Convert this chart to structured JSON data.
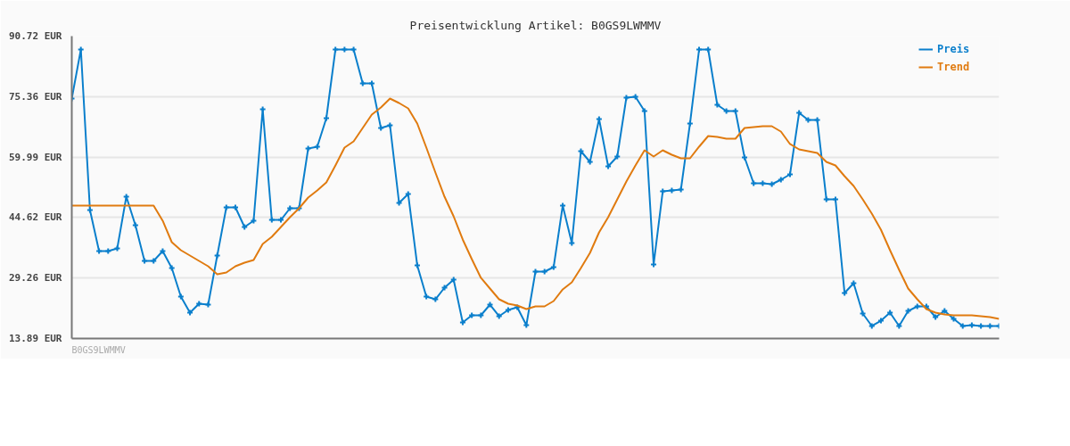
{
  "chart_data": {
    "type": "line",
    "title": "Preisentwicklung Artikel: B0GS9LWMMV",
    "categories": [
      null,
      null,
      null,
      null,
      null,
      null,
      null,
      null,
      null,
      null,
      null,
      null,
      null,
      null,
      null,
      null,
      null,
      null,
      null,
      null,
      null,
      null,
      null,
      null,
      null,
      null,
      null,
      null,
      null,
      null,
      null,
      null,
      null,
      null,
      null,
      null,
      null,
      null,
      null,
      null,
      null,
      null,
      null,
      null,
      null,
      null,
      null,
      null,
      null,
      null,
      null,
      null,
      null,
      null,
      null,
      null,
      null,
      null,
      null,
      null,
      null,
      null,
      null,
      null,
      null,
      null,
      null,
      null,
      null,
      null,
      null,
      null,
      null,
      null,
      null,
      null,
      null,
      null,
      null,
      null,
      null,
      null,
      null,
      null,
      null,
      null,
      null,
      null,
      null,
      null,
      null,
      null,
      null,
      null,
      null,
      null,
      null,
      null,
      null,
      null,
      null,
      null,
      null
    ],
    "series": [
      {
        "name": "Preis",
        "color": "#0a7fcc",
        "marker": "cross",
        "values": [
          74.86,
          87.32,
          46.53,
          36.1,
          36.1,
          36.78,
          49.92,
          42.67,
          33.61,
          33.61,
          36.1,
          31.79,
          24.54,
          20.46,
          22.73,
          22.5,
          34.97,
          47.21,
          47.21,
          42.22,
          43.81,
          72.13,
          44.03,
          44.03,
          46.98,
          46.98,
          62.16,
          62.62,
          69.87,
          87.32,
          87.32,
          87.32,
          78.71,
          78.71,
          67.38,
          68.06,
          48.34,
          50.6,
          32.47,
          24.54,
          23.86,
          26.81,
          28.85,
          17.97,
          19.78,
          19.78,
          22.5,
          19.56,
          21.14,
          21.82,
          17.29,
          30.89,
          30.89,
          32.02,
          47.66,
          38.14,
          61.48,
          58.76,
          69.64,
          57.63,
          60.12,
          75.08,
          75.31,
          71.68,
          32.7,
          51.28,
          51.51,
          51.74,
          68.51,
          87.32,
          87.32,
          73.27,
          71.68,
          71.68,
          59.9,
          53.32,
          53.32,
          53.1,
          54.23,
          55.59,
          71.23,
          69.42,
          69.42,
          49.25,
          49.25,
          25.45,
          27.94,
          20.24,
          17.07,
          18.42,
          20.46,
          17.07,
          20.91,
          22.05,
          22.05,
          19.33,
          20.91,
          18.88,
          17.07,
          17.29,
          17.07,
          17.07,
          17.07
        ]
      },
      {
        "name": "Trend",
        "color": "#e07b10",
        "marker": "none",
        "values": [
          47.66,
          47.66,
          47.66,
          47.66,
          47.66,
          47.66,
          47.66,
          47.66,
          47.66,
          47.66,
          43.81,
          38.37,
          36.33,
          34.97,
          33.61,
          32.25,
          30.21,
          30.66,
          32.25,
          33.15,
          33.83,
          37.91,
          39.73,
          42.22,
          44.71,
          46.98,
          49.7,
          51.51,
          53.55,
          57.86,
          62.39,
          63.98,
          67.38,
          70.78,
          72.59,
          74.86,
          73.72,
          72.36,
          68.51,
          62.39,
          56.04,
          49.92,
          44.94,
          39.05,
          34.06,
          29.31,
          26.58,
          23.86,
          22.73,
          22.27,
          21.37,
          22.05,
          22.05,
          23.41,
          26.36,
          28.17,
          31.79,
          35.65,
          40.86,
          44.71,
          49.25,
          53.78,
          57.86,
          61.71,
          60.12,
          61.71,
          60.58,
          59.67,
          59.67,
          62.62,
          65.34,
          65.11,
          64.66,
          64.66,
          67.38,
          67.6,
          67.83,
          67.83,
          66.47,
          63.3,
          61.94,
          61.48,
          61.03,
          58.76,
          57.86,
          55.14,
          52.65,
          49.25,
          45.62,
          41.54,
          36.33,
          31.34,
          26.58,
          23.86,
          21.37,
          20.46,
          20.01,
          19.78,
          19.78,
          19.78,
          19.56,
          19.33,
          18.88
        ]
      }
    ],
    "ylim": [
      13.89,
      90.72
    ],
    "yticks": [
      {
        "value": 13.89,
        "label": "13.89 EUR"
      },
      {
        "value": 29.26,
        "label": "29.26 EUR"
      },
      {
        "value": 44.62,
        "label": "44.62 EUR"
      },
      {
        "value": 59.99,
        "label": "59.99 EUR"
      },
      {
        "value": 75.36,
        "label": "75.36 EUR"
      },
      {
        "value": 90.72,
        "label": "90.72 EUR"
      }
    ],
    "grid": "y",
    "legend": "top right",
    "tick_labels": "y",
    "annotations": [
      "B0GS9LWMMV"
    ]
  }
}
